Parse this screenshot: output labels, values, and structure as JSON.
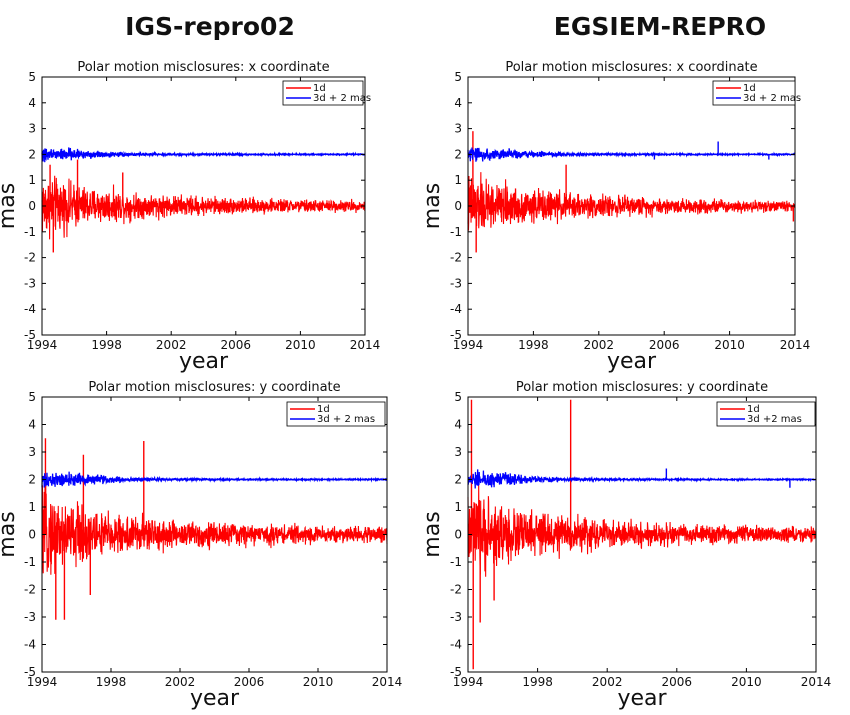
{
  "titles": {
    "left": "IGS-repro02",
    "right": "EGSIEM-REPRO"
  },
  "colors": {
    "series_1d": "#ff0000",
    "series_3d": "#0000ff",
    "axis": "#000000"
  },
  "chart_data": [
    {
      "type": "line",
      "title": "Polar motion misclosures: x coordinate",
      "xlabel": "year",
      "ylabel": "mas",
      "xlim": [
        1994,
        2014
      ],
      "ylim": [
        -5,
        5
      ],
      "xticks": [
        "1994",
        "1998",
        "2002",
        "2006",
        "2010",
        "2014"
      ],
      "yticks": [
        "-5",
        "-4",
        "-3",
        "-2",
        "-1",
        "0",
        "1",
        "2",
        "3",
        "4",
        "5"
      ],
      "legend": {
        "position": "top-right",
        "entries": [
          "1d",
          "3d + 2 mas"
        ]
      },
      "series": [
        {
          "name": "1d",
          "color": "#ff0000",
          "x": [
            1994.0,
            1995.0,
            1996.0,
            1997.0,
            1998.0,
            1999.0,
            2000.0,
            2002.0,
            2006.0,
            2010.0,
            2014.0
          ],
          "y_amplitude": [
            1.8,
            1.5,
            1.2,
            1.0,
            0.9,
            0.8,
            0.7,
            0.6,
            0.45,
            0.35,
            0.3
          ],
          "spikes": [
            {
              "x": 1994.5,
              "y": 1.6
            },
            {
              "x": 1996.2,
              "y": 1.8
            },
            {
              "x": 1994.7,
              "y": -1.8
            },
            {
              "x": 1999.0,
              "y": 1.3
            }
          ]
        },
        {
          "name": "3d + 2 mas",
          "color": "#0000ff",
          "center": 2.0,
          "x": [
            1994.0,
            1996.0,
            1998.0,
            2000.0,
            2002.0,
            2006.0,
            2010.0,
            2014.0
          ],
          "y_amplitude": [
            0.4,
            0.3,
            0.15,
            0.08,
            0.05,
            0.04,
            0.03,
            0.03
          ],
          "spikes": []
        }
      ]
    },
    {
      "type": "line",
      "title": "Polar motion misclosures: x coordinate",
      "xlabel": "year",
      "ylabel": "mas",
      "xlim": [
        1994,
        2014
      ],
      "ylim": [
        -5,
        5
      ],
      "xticks": [
        "1994",
        "1998",
        "2002",
        "2006",
        "2010",
        "2014"
      ],
      "yticks": [
        "-5",
        "-4",
        "-3",
        "-2",
        "-1",
        "0",
        "1",
        "2",
        "3",
        "4",
        "5"
      ],
      "legend": {
        "position": "top-right",
        "entries": [
          "1d",
          "3d + 2 mas"
        ]
      },
      "series": [
        {
          "name": "1d",
          "color": "#ff0000",
          "x": [
            1994.0,
            1995.0,
            1996.0,
            1997.0,
            1998.0,
            1999.0,
            2000.0,
            2002.0,
            2006.0,
            2010.0,
            2014.0
          ],
          "y_amplitude": [
            1.8,
            1.5,
            1.2,
            1.0,
            0.9,
            0.85,
            0.75,
            0.6,
            0.45,
            0.35,
            0.3
          ],
          "spikes": [
            {
              "x": 1994.3,
              "y": 2.9
            },
            {
              "x": 1994.5,
              "y": -1.8
            },
            {
              "x": 2000.0,
              "y": 1.6
            },
            {
              "x": 2013.9,
              "y": -0.6
            }
          ]
        },
        {
          "name": "3d + 2 mas",
          "color": "#0000ff",
          "center": 2.0,
          "x": [
            1994.0,
            1996.0,
            1998.0,
            2000.0,
            2002.0,
            2006.0,
            2010.0,
            2014.0
          ],
          "y_amplitude": [
            0.4,
            0.3,
            0.15,
            0.08,
            0.05,
            0.04,
            0.03,
            0.03
          ],
          "spikes": [
            {
              "x": 2009.3,
              "y": 2.5
            },
            {
              "x": 2005.4,
              "y": 1.8
            },
            {
              "x": 2012.4,
              "y": 1.8
            }
          ]
        }
      ]
    },
    {
      "type": "line",
      "title": "Polar motion misclosures: y coordinate",
      "xlabel": "year",
      "ylabel": "mas",
      "xlim": [
        1994,
        2014
      ],
      "ylim": [
        -5,
        5
      ],
      "xticks": [
        "1994",
        "1998",
        "2002",
        "2006",
        "2010",
        "2014"
      ],
      "yticks": [
        "-5",
        "-4",
        "-3",
        "-2",
        "-1",
        "0",
        "1",
        "2",
        "3",
        "4",
        "5"
      ],
      "legend": {
        "position": "top-right",
        "entries": [
          "1d",
          "3d + 2 mas"
        ]
      },
      "series": [
        {
          "name": "1d",
          "color": "#ff0000",
          "x": [
            1994.0,
            1995.0,
            1996.0,
            1997.0,
            1998.0,
            1999.0,
            2000.0,
            2002.0,
            2006.0,
            2010.0,
            2014.0
          ],
          "y_amplitude": [
            2.2,
            1.9,
            1.6,
            1.3,
            1.1,
            1.0,
            0.9,
            0.75,
            0.55,
            0.45,
            0.4
          ],
          "spikes": [
            {
              "x": 1994.2,
              "y": 3.5
            },
            {
              "x": 1994.8,
              "y": -3.1
            },
            {
              "x": 1995.3,
              "y": -3.1
            },
            {
              "x": 1996.4,
              "y": 2.9
            },
            {
              "x": 1999.9,
              "y": 3.4
            },
            {
              "x": 1996.8,
              "y": -2.2
            }
          ]
        },
        {
          "name": "3d + 2 mas",
          "color": "#0000ff",
          "center": 2.0,
          "x": [
            1994.0,
            1996.0,
            1998.0,
            2000.0,
            2002.0,
            2006.0,
            2010.0,
            2014.0
          ],
          "y_amplitude": [
            0.45,
            0.35,
            0.15,
            0.08,
            0.05,
            0.04,
            0.03,
            0.03
          ],
          "spikes": []
        }
      ]
    },
    {
      "type": "line",
      "title": "Polar motion misclosures: y coordinate",
      "xlabel": "year",
      "ylabel": "mas",
      "xlim": [
        1994,
        2014
      ],
      "ylim": [
        -5,
        5
      ],
      "xticks": [
        "1994",
        "1998",
        "2002",
        "2006",
        "2010",
        "2014"
      ],
      "yticks": [
        "-5",
        "-4",
        "-3",
        "-2",
        "-1",
        "0",
        "1",
        "2",
        "3",
        "4",
        "5"
      ],
      "legend": {
        "position": "top-right",
        "entries": [
          "1d",
          "3d +2 mas"
        ]
      },
      "series": [
        {
          "name": "1d",
          "color": "#ff0000",
          "x": [
            1994.0,
            1995.0,
            1996.0,
            1997.0,
            1998.0,
            1999.0,
            2000.0,
            2002.0,
            2006.0,
            2010.0,
            2014.0
          ],
          "y_amplitude": [
            2.2,
            1.9,
            1.6,
            1.3,
            1.1,
            1.0,
            0.9,
            0.75,
            0.55,
            0.45,
            0.4
          ],
          "spikes": [
            {
              "x": 1994.2,
              "y": 4.9
            },
            {
              "x": 1994.3,
              "y": -4.9
            },
            {
              "x": 1994.7,
              "y": -3.2
            },
            {
              "x": 1999.9,
              "y": 4.9
            },
            {
              "x": 1995.5,
              "y": -2.4
            }
          ]
        },
        {
          "name": "3d +2 mas",
          "color": "#0000ff",
          "center": 2.0,
          "x": [
            1994.0,
            1996.0,
            1998.0,
            2000.0,
            2002.0,
            2006.0,
            2010.0,
            2014.0
          ],
          "y_amplitude": [
            0.45,
            0.35,
            0.15,
            0.08,
            0.05,
            0.04,
            0.03,
            0.03
          ],
          "spikes": [
            {
              "x": 2005.4,
              "y": 2.4
            },
            {
              "x": 2012.5,
              "y": 1.7
            }
          ]
        }
      ]
    }
  ]
}
